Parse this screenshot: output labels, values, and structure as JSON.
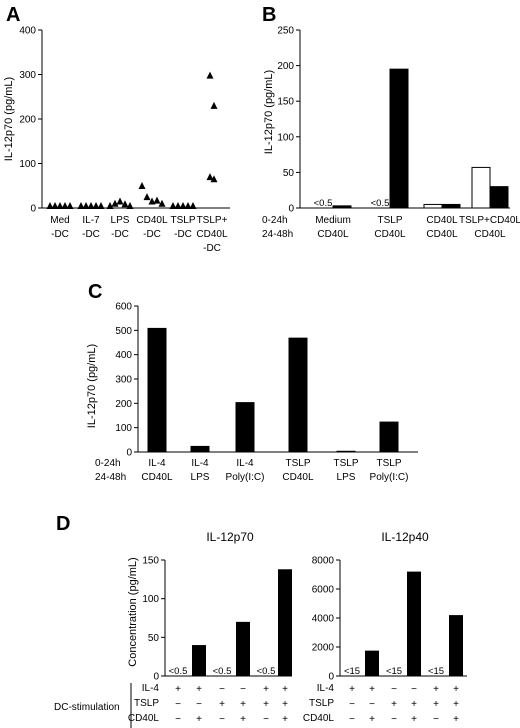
{
  "chart_data": [
    {
      "panel": "A",
      "type": "scatter",
      "ylabel": "IL-12p70 (pg/mL)",
      "ylim": [
        0,
        400
      ],
      "yticks": [
        "0",
        "100",
        "200",
        "300",
        "400"
      ],
      "categories": [
        {
          "line1": "Med",
          "line2": "-DC",
          "line3": ""
        },
        {
          "line1": "IL-7",
          "line2": "-DC",
          "line3": ""
        },
        {
          "line1": "LPS",
          "line2": "-DC",
          "line3": ""
        },
        {
          "line1": "CD40L",
          "line2": "-DC",
          "line3": ""
        },
        {
          "line1": "TSLP",
          "line2": "-DC",
          "line3": ""
        },
        {
          "line1": "TSLP+",
          "line2": "CD40L",
          "line3": "-DC"
        }
      ],
      "points": [
        [
          0,
          0,
          0,
          0,
          0
        ],
        [
          0,
          0,
          0,
          0,
          0
        ],
        [
          0,
          5,
          10,
          4,
          0
        ],
        [
          45,
          20,
          10,
          12,
          5
        ],
        [
          0,
          0,
          0,
          0,
          0
        ],
        [
          293,
          225,
          65,
          60
        ]
      ]
    },
    {
      "panel": "B",
      "type": "bar",
      "ylabel": "IL-12p70 (pg/mL)",
      "ylim": [
        0,
        250
      ],
      "yticks": [
        "0",
        "50",
        "100",
        "150",
        "200",
        "250"
      ],
      "row_labels": [
        "0-24h",
        "24-48h"
      ],
      "groups": [
        {
          "row1": "Medium",
          "row2": "CD40L"
        },
        {
          "row1": "TSLP",
          "row2": "CD40L"
        },
        {
          "row1": "CD40L",
          "row2": "CD40L"
        },
        {
          "row1": "TSLP+CD40L",
          "row2": "CD40L"
        }
      ],
      "series": [
        {
          "fill": "#ffffff",
          "values": [
            0,
            0,
            5,
            57
          ],
          "labels": [
            "<0.5",
            "<0.5",
            "",
            ""
          ]
        },
        {
          "fill": "#000000",
          "values": [
            3,
            195,
            5,
            30
          ],
          "labels": [
            "",
            "",
            "",
            ""
          ]
        }
      ]
    },
    {
      "panel": "C",
      "type": "bar",
      "ylabel": "IL-12p70 (pg/mL)",
      "ylim": [
        0,
        600
      ],
      "yticks": [
        "0",
        "100",
        "200",
        "300",
        "400",
        "500",
        "600"
      ],
      "row_labels": [
        "0-24h",
        "24-48h"
      ],
      "groups": [
        {
          "row1": "IL-4",
          "row2": "CD40L"
        },
        {
          "row1": "IL-4",
          "row2": "LPS"
        },
        {
          "row1": "IL-4",
          "row2": "Poly(I:C)"
        },
        {
          "row1": "TSLP",
          "row2": "CD40L"
        },
        {
          "row1": "TSLP",
          "row2": "LPS"
        },
        {
          "row1": "TSLP",
          "row2": "Poly(I:C)"
        }
      ],
      "values": [
        510,
        25,
        205,
        470,
        5,
        125
      ]
    },
    {
      "panel": "D",
      "type": "bar",
      "ylabel": "Concentration (pg/mL)",
      "stim_title": "DC-stimulation",
      "stim_rows": [
        {
          "name": "IL-4",
          "marks": [
            "+",
            "+",
            "−",
            "−",
            "+",
            "+"
          ]
        },
        {
          "name": "TSLP",
          "marks": [
            "−",
            "−",
            "+",
            "+",
            "+",
            "+"
          ]
        },
        {
          "name": "CD40L",
          "marks": [
            "−",
            "+",
            "−",
            "+",
            "−",
            "+"
          ]
        }
      ],
      "subplots": [
        {
          "title": "IL-12p70",
          "ylim": [
            0,
            150
          ],
          "yticks": [
            "0",
            "50",
            "100",
            "150"
          ],
          "values": [
            0,
            40,
            0,
            70,
            0,
            138
          ],
          "labels": [
            "<0.5",
            "",
            "<0.5",
            "",
            "<0.5",
            ""
          ]
        },
        {
          "title": "IL-12p40",
          "ylim": [
            0,
            8000
          ],
          "yticks": [
            "0",
            "2000",
            "4000",
            "6000",
            "8000"
          ],
          "values": [
            0,
            1750,
            0,
            7200,
            0,
            4200
          ],
          "labels": [
            "<15",
            "",
            "<15",
            "",
            "<15",
            ""
          ]
        }
      ]
    }
  ]
}
